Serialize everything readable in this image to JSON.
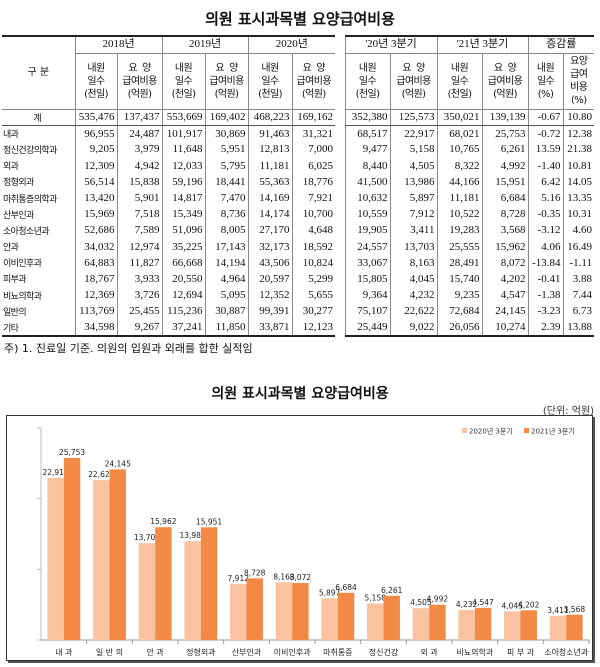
{
  "title": "의원 표시과목별 요양급여비용",
  "table": {
    "header_label": "구 분",
    "groups": [
      "2018년",
      "2019년",
      "2020년",
      "'20년 3분기",
      "'21년 3분기",
      "증감률"
    ],
    "sub": [
      "내원\n일수\n(천일)",
      "요  양\n급여비용\n(억원)",
      "내원\n일수\n(천일)",
      "요  양\n급여비용\n(억원)",
      "내원\n일수\n(천일)",
      "요  양\n급여비용\n(억원)",
      "내원\n일수\n(천일)",
      "요  양\n급여비용\n(억원)",
      "내원\n일수\n(천일)",
      "요  양\n급여비용\n(억원)",
      "내원\n일수\n(%)",
      "요양\n급여\n비용\n(%)"
    ],
    "rows": [
      [
        "계",
        "535,476",
        "137,437",
        "553,669",
        "169,402",
        "468,223",
        "169,162",
        "352,380",
        "125,573",
        "350,021",
        "139,139",
        "-0.67",
        "10.80"
      ],
      [
        "내과",
        "96,955",
        "24,487",
        "101,917",
        "30,869",
        "91,463",
        "31,321",
        "68,517",
        "22,917",
        "68,021",
        "25,753",
        "-0.72",
        "12.38"
      ],
      [
        "정신건강의학과",
        "9,205",
        "3,979",
        "11,648",
        "5,951",
        "12,813",
        "7,000",
        "9,477",
        "5,158",
        "10,765",
        "6,261",
        "13.59",
        "21.38"
      ],
      [
        "외과",
        "12,309",
        "4,942",
        "12,033",
        "5,795",
        "11,181",
        "6,025",
        "8,440",
        "4,505",
        "8,322",
        "4,992",
        "-1.40",
        "10.81"
      ],
      [
        "정형외과",
        "56,514",
        "15,838",
        "59,196",
        "18,441",
        "55,363",
        "18,776",
        "41,500",
        "13,986",
        "44,166",
        "15,951",
        "6.42",
        "14.05"
      ],
      [
        "마취통증의학과",
        "13,420",
        "5,901",
        "14,817",
        "7,470",
        "14,169",
        "7,921",
        "10,632",
        "5,897",
        "11,181",
        "6,684",
        "5.16",
        "13.35"
      ],
      [
        "산부인과",
        "15,969",
        "7,518",
        "15,349",
        "8,736",
        "14,174",
        "10,700",
        "10,559",
        "7,912",
        "10,522",
        "8,728",
        "-0.35",
        "10.31"
      ],
      [
        "소아청소년과",
        "52,686",
        "7,589",
        "51,096",
        "8,005",
        "27,170",
        "4,648",
        "19,905",
        "3,411",
        "19,283",
        "3,568",
        "-3.12",
        "4.60"
      ],
      [
        "안과",
        "34,032",
        "12,974",
        "35,225",
        "17,143",
        "32,173",
        "18,592",
        "24,557",
        "13,703",
        "25,555",
        "15,962",
        "4.06",
        "16.49"
      ],
      [
        "이비인후과",
        "64,883",
        "11,827",
        "66,668",
        "14,194",
        "43,506",
        "10,824",
        "33,067",
        "8,163",
        "28,491",
        "8,072",
        "-13.84",
        "-1.11"
      ],
      [
        "피부과",
        "18,767",
        "3,933",
        "20,550",
        "4,964",
        "20,597",
        "5,299",
        "15,805",
        "4,045",
        "15,740",
        "4,202",
        "-0.41",
        "3.88"
      ],
      [
        "비뇨의학과",
        "12,369",
        "3,726",
        "12,694",
        "5,095",
        "12,352",
        "5,655",
        "9,364",
        "4,232",
        "9,235",
        "4,547",
        "-1.38",
        "7.44"
      ],
      [
        "일반의",
        "113,769",
        "25,455",
        "115,236",
        "30,887",
        "99,391",
        "30,277",
        "75,107",
        "22,622",
        "72,684",
        "24,145",
        "-3.23",
        "6.73"
      ],
      [
        "기타",
        "34,598",
        "9,267",
        "37,241",
        "11,850",
        "33,871",
        "12,123",
        "25,449",
        "9,022",
        "26,056",
        "10,274",
        "2.39",
        "13.88"
      ]
    ]
  },
  "note": "주) 1. 진료일 기준. 의원의 입원과 외래를 합한 실적임",
  "chart_data": {
    "type": "bar",
    "title": "의원 표시과목별 요양급여비용",
    "unit": "(단위: 억원)",
    "categories": [
      "내 과",
      "일 반 의",
      "안 과",
      "정형외과",
      "산부인과",
      "이비인후과",
      "마취통증\n의학과",
      "정신건강\n의학과",
      "외 과",
      "비뇨의학과",
      "피 부 과",
      "소아청소년과"
    ],
    "series": [
      {
        "name": "2020년 3분기",
        "color": "#f9c3a0",
        "values": [
          22917,
          22622,
          13703,
          13986,
          7912,
          8163,
          5897,
          5158,
          4505,
          4232,
          4045,
          3411
        ]
      },
      {
        "name": "2021년 3분기",
        "color": "#f28a45",
        "values": [
          25753,
          24145,
          15962,
          15951,
          8728,
          8072,
          6684,
          6261,
          4992,
          4547,
          4202,
          3568
        ]
      }
    ],
    "ylim": [
      0,
      30000
    ],
    "legend": "top-right",
    "grid": false
  }
}
